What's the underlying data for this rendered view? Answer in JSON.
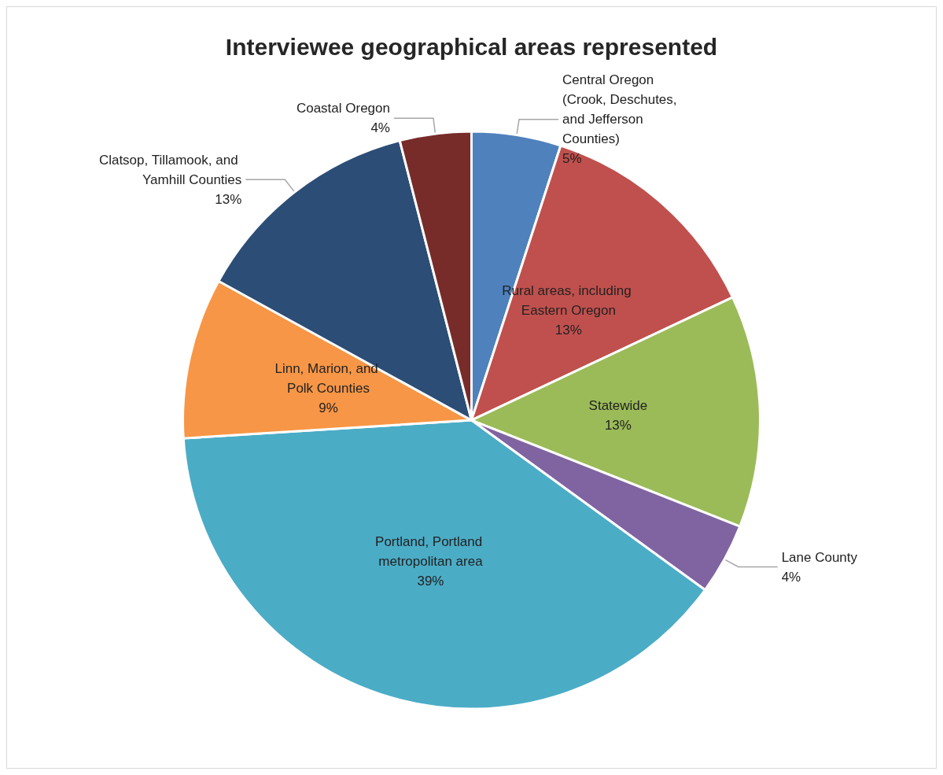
{
  "chart_data": {
    "type": "pie",
    "title": "Interviewee geographical areas represented",
    "categories": [
      "Central Oregon (Crook, Deschutes, and Jefferson Counties)",
      "Rural areas, including Eastern Oregon",
      "Statewide",
      "Lane County",
      "Portland, Portland metropolitan area",
      "Linn, Marion, and Polk Counties",
      "Clatsop, Tillamook, and Yamhill Counties",
      "Coastal Oregon"
    ],
    "values": [
      5,
      13,
      13,
      4,
      39,
      9,
      13,
      4
    ],
    "colors": [
      "#4f81bd",
      "#c0504d",
      "#9bbb59",
      "#8064a2",
      "#4bacc6",
      "#f79646",
      "#2c4d75",
      "#772c2a"
    ],
    "value_labels": [
      "5%",
      "13%",
      "13%",
      "4%",
      "39%",
      "9%",
      "13%",
      "4%"
    ],
    "legend": false
  }
}
